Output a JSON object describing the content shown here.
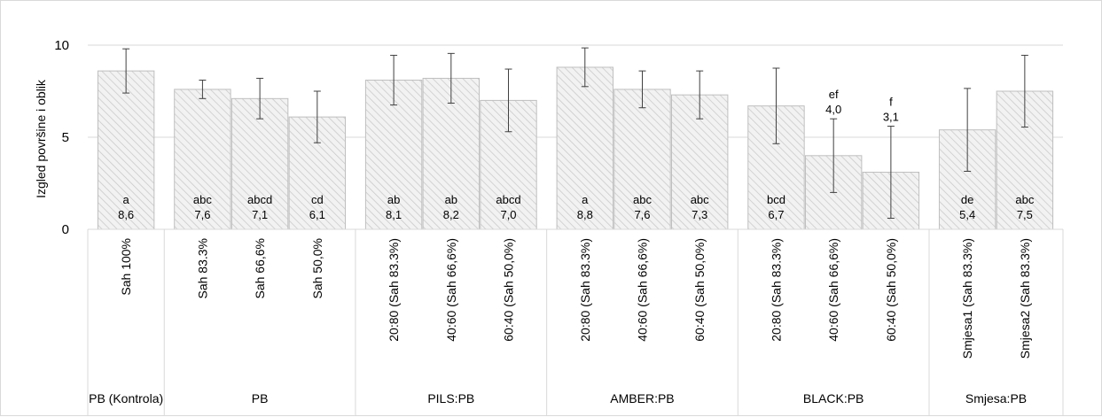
{
  "chart_data": {
    "type": "bar",
    "title": "",
    "xlabel": "",
    "ylabel": "Izgled površine i oblik",
    "ylim": [
      0,
      10
    ],
    "yticks": [
      0,
      5,
      10
    ],
    "grid": true,
    "legend": "none",
    "colors": {
      "bar_fill": "#f2f2f2",
      "bar_hatch": "#c8c8c8",
      "bar_edge": "#bfbfbf",
      "grid": "#d9d9d9",
      "error_bar": "#404040"
    },
    "groups": [
      {
        "label": "PB (Kontrola)",
        "categories": [
          "Sah 100%"
        ],
        "values": [
          8.6
        ],
        "errors": [
          1.2
        ],
        "letters": [
          "a"
        ],
        "value_labels": [
          "8,6"
        ]
      },
      {
        "label": "PB",
        "categories": [
          "Sah 83.3%",
          "Sah 66,6%",
          "Sah 50,0%"
        ],
        "values": [
          7.6,
          7.1,
          6.1
        ],
        "errors": [
          0.5,
          1.1,
          1.4
        ],
        "letters": [
          "abc",
          "abcd",
          "cd"
        ],
        "value_labels": [
          "7,6",
          "7,1",
          "6,1"
        ]
      },
      {
        "label": "PILS:PB",
        "categories": [
          "20:80 (Sah 83.3%)",
          "40:60 (Sah 66,6%)",
          "60:40 (Sah 50,0%)"
        ],
        "values": [
          8.1,
          8.2,
          7.0
        ],
        "errors": [
          1.35,
          1.35,
          1.7
        ],
        "letters": [
          "ab",
          "ab",
          "abcd"
        ],
        "value_labels": [
          "8,1",
          "8,2",
          "7,0"
        ]
      },
      {
        "label": "AMBER:PB",
        "categories": [
          "20:80 (Sah 83.3%)",
          "40:60 (Sah 66,6%)",
          "60:40 (Sah 50,0%)"
        ],
        "values": [
          8.8,
          7.6,
          7.3
        ],
        "errors": [
          1.05,
          1.0,
          1.3
        ],
        "letters": [
          "a",
          "abc",
          "abc"
        ],
        "value_labels": [
          "8,8",
          "7,6",
          "7,3"
        ]
      },
      {
        "label": "BLACK:PB",
        "categories": [
          "20:80 (Sah 83.3%)",
          "40:60 (Sah 66,6%)",
          "60:40 (Sah 50,0%)"
        ],
        "values": [
          6.7,
          4.0,
          3.1
        ],
        "errors": [
          2.05,
          2.0,
          2.5
        ],
        "letters": [
          "bcd",
          "ef",
          "f"
        ],
        "value_labels": [
          "6,7",
          "4,0",
          "3,1"
        ]
      },
      {
        "label": "Smjesa:PB",
        "categories": [
          "Smjesa1 (Sah 83.3%)",
          "Smjesa2 (Sah 83.3%)"
        ],
        "values": [
          5.4,
          7.5
        ],
        "errors": [
          2.25,
          1.95
        ],
        "letters": [
          "de",
          "abc"
        ],
        "value_labels": [
          "5,4",
          "7,5"
        ]
      }
    ]
  }
}
